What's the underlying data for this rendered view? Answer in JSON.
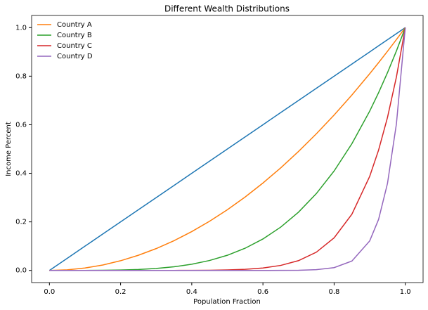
{
  "chart_data": {
    "type": "line",
    "title": "Different Wealth Distributions",
    "x_label": "Population Fraction",
    "y_label": "Income Percent",
    "x": [
      0,
      0.05,
      0.1,
      0.15,
      0.2,
      0.25,
      0.3,
      0.35,
      0.4,
      0.45,
      0.5,
      0.55,
      0.6,
      0.65,
      0.7,
      0.75,
      0.8,
      0.85,
      0.9,
      0.925,
      0.95,
      0.975,
      1
    ],
    "series": [
      {
        "color": "#1f77b4",
        "values": [
          0,
          0.05,
          0.1,
          0.15,
          0.2,
          0.25,
          0.3,
          0.35,
          0.4,
          0.45,
          0.5,
          0.55,
          0.6,
          0.65,
          0.7,
          0.75,
          0.8,
          0.85,
          0.9,
          0.925,
          0.95,
          0.975,
          1
        ]
      },
      {
        "name": "Country A",
        "color": "#ff7f0e",
        "values": [
          0,
          0.0025,
          0.01,
          0.0225,
          0.04,
          0.0625,
          0.09,
          0.1225,
          0.16,
          0.2025,
          0.25,
          0.3025,
          0.36,
          0.4225,
          0.49,
          0.5625,
          0.64,
          0.7225,
          0.81,
          0.8556,
          0.9025,
          0.9506,
          1
        ]
      },
      {
        "name": "Country B",
        "color": "#2ca02c",
        "values": [
          0,
          0,
          0.0001,
          0.0005,
          0.0016,
          0.0039,
          0.0081,
          0.015,
          0.0256,
          0.041,
          0.0625,
          0.0915,
          0.1296,
          0.1785,
          0.2401,
          0.3164,
          0.4096,
          0.522,
          0.6561,
          0.7321,
          0.8145,
          0.9037,
          1
        ]
      },
      {
        "name": "Country C",
        "color": "#d62728",
        "values": [
          0,
          0,
          0,
          0,
          0,
          0,
          0,
          0.0001,
          0.0003,
          0.0008,
          0.002,
          0.0046,
          0.0101,
          0.0207,
          0.0404,
          0.0751,
          0.1342,
          0.2316,
          0.3874,
          0.4958,
          0.6302,
          0.7962,
          1
        ]
      },
      {
        "name": "Country D",
        "color": "#9467bd",
        "values": [
          0,
          0,
          0,
          0,
          0,
          0,
          0,
          0,
          0,
          0,
          0,
          0,
          0,
          0.0002,
          0.0008,
          0.0032,
          0.0115,
          0.0388,
          0.1216,
          0.2103,
          0.3585,
          0.6027,
          1
        ]
      }
    ],
    "xlim": [
      -0.05,
      1.05
    ],
    "ylim": [
      -0.05,
      1.05
    ],
    "xticks": [
      {
        "value": 0,
        "label": "0.0"
      },
      {
        "value": 0.2,
        "label": "0.2"
      },
      {
        "value": 0.4,
        "label": "0.4"
      },
      {
        "value": 0.6,
        "label": "0.6"
      },
      {
        "value": 0.8,
        "label": "0.8"
      },
      {
        "value": 1,
        "label": "1.0"
      }
    ],
    "yticks": [
      {
        "value": 0,
        "label": "0.0"
      },
      {
        "value": 0.2,
        "label": "0.2"
      },
      {
        "value": 0.4,
        "label": "0.4"
      },
      {
        "value": 0.6,
        "label": "0.6"
      },
      {
        "value": 0.8,
        "label": "0.8"
      },
      {
        "value": 1,
        "label": "1.0"
      }
    ],
    "grid": false,
    "legend": "upper left"
  }
}
